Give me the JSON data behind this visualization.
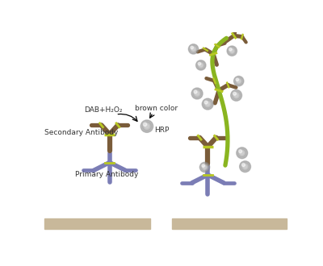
{
  "bg_color": "#ffffff",
  "ab_color": "#7a5c3a",
  "primary_color": "#7B7DB5",
  "linker_color": "#b8c822",
  "polymer_color": "#8ab520",
  "hrp_color": "#999999",
  "surface_color": "#c8b89a",
  "text_color": "#333333",
  "label_secondary": "Secondary Antibody",
  "label_primary": "Primary Antibody",
  "label_dab": "DAB+H₂O₂",
  "label_hrp": "HRP",
  "label_brown": "brown color"
}
